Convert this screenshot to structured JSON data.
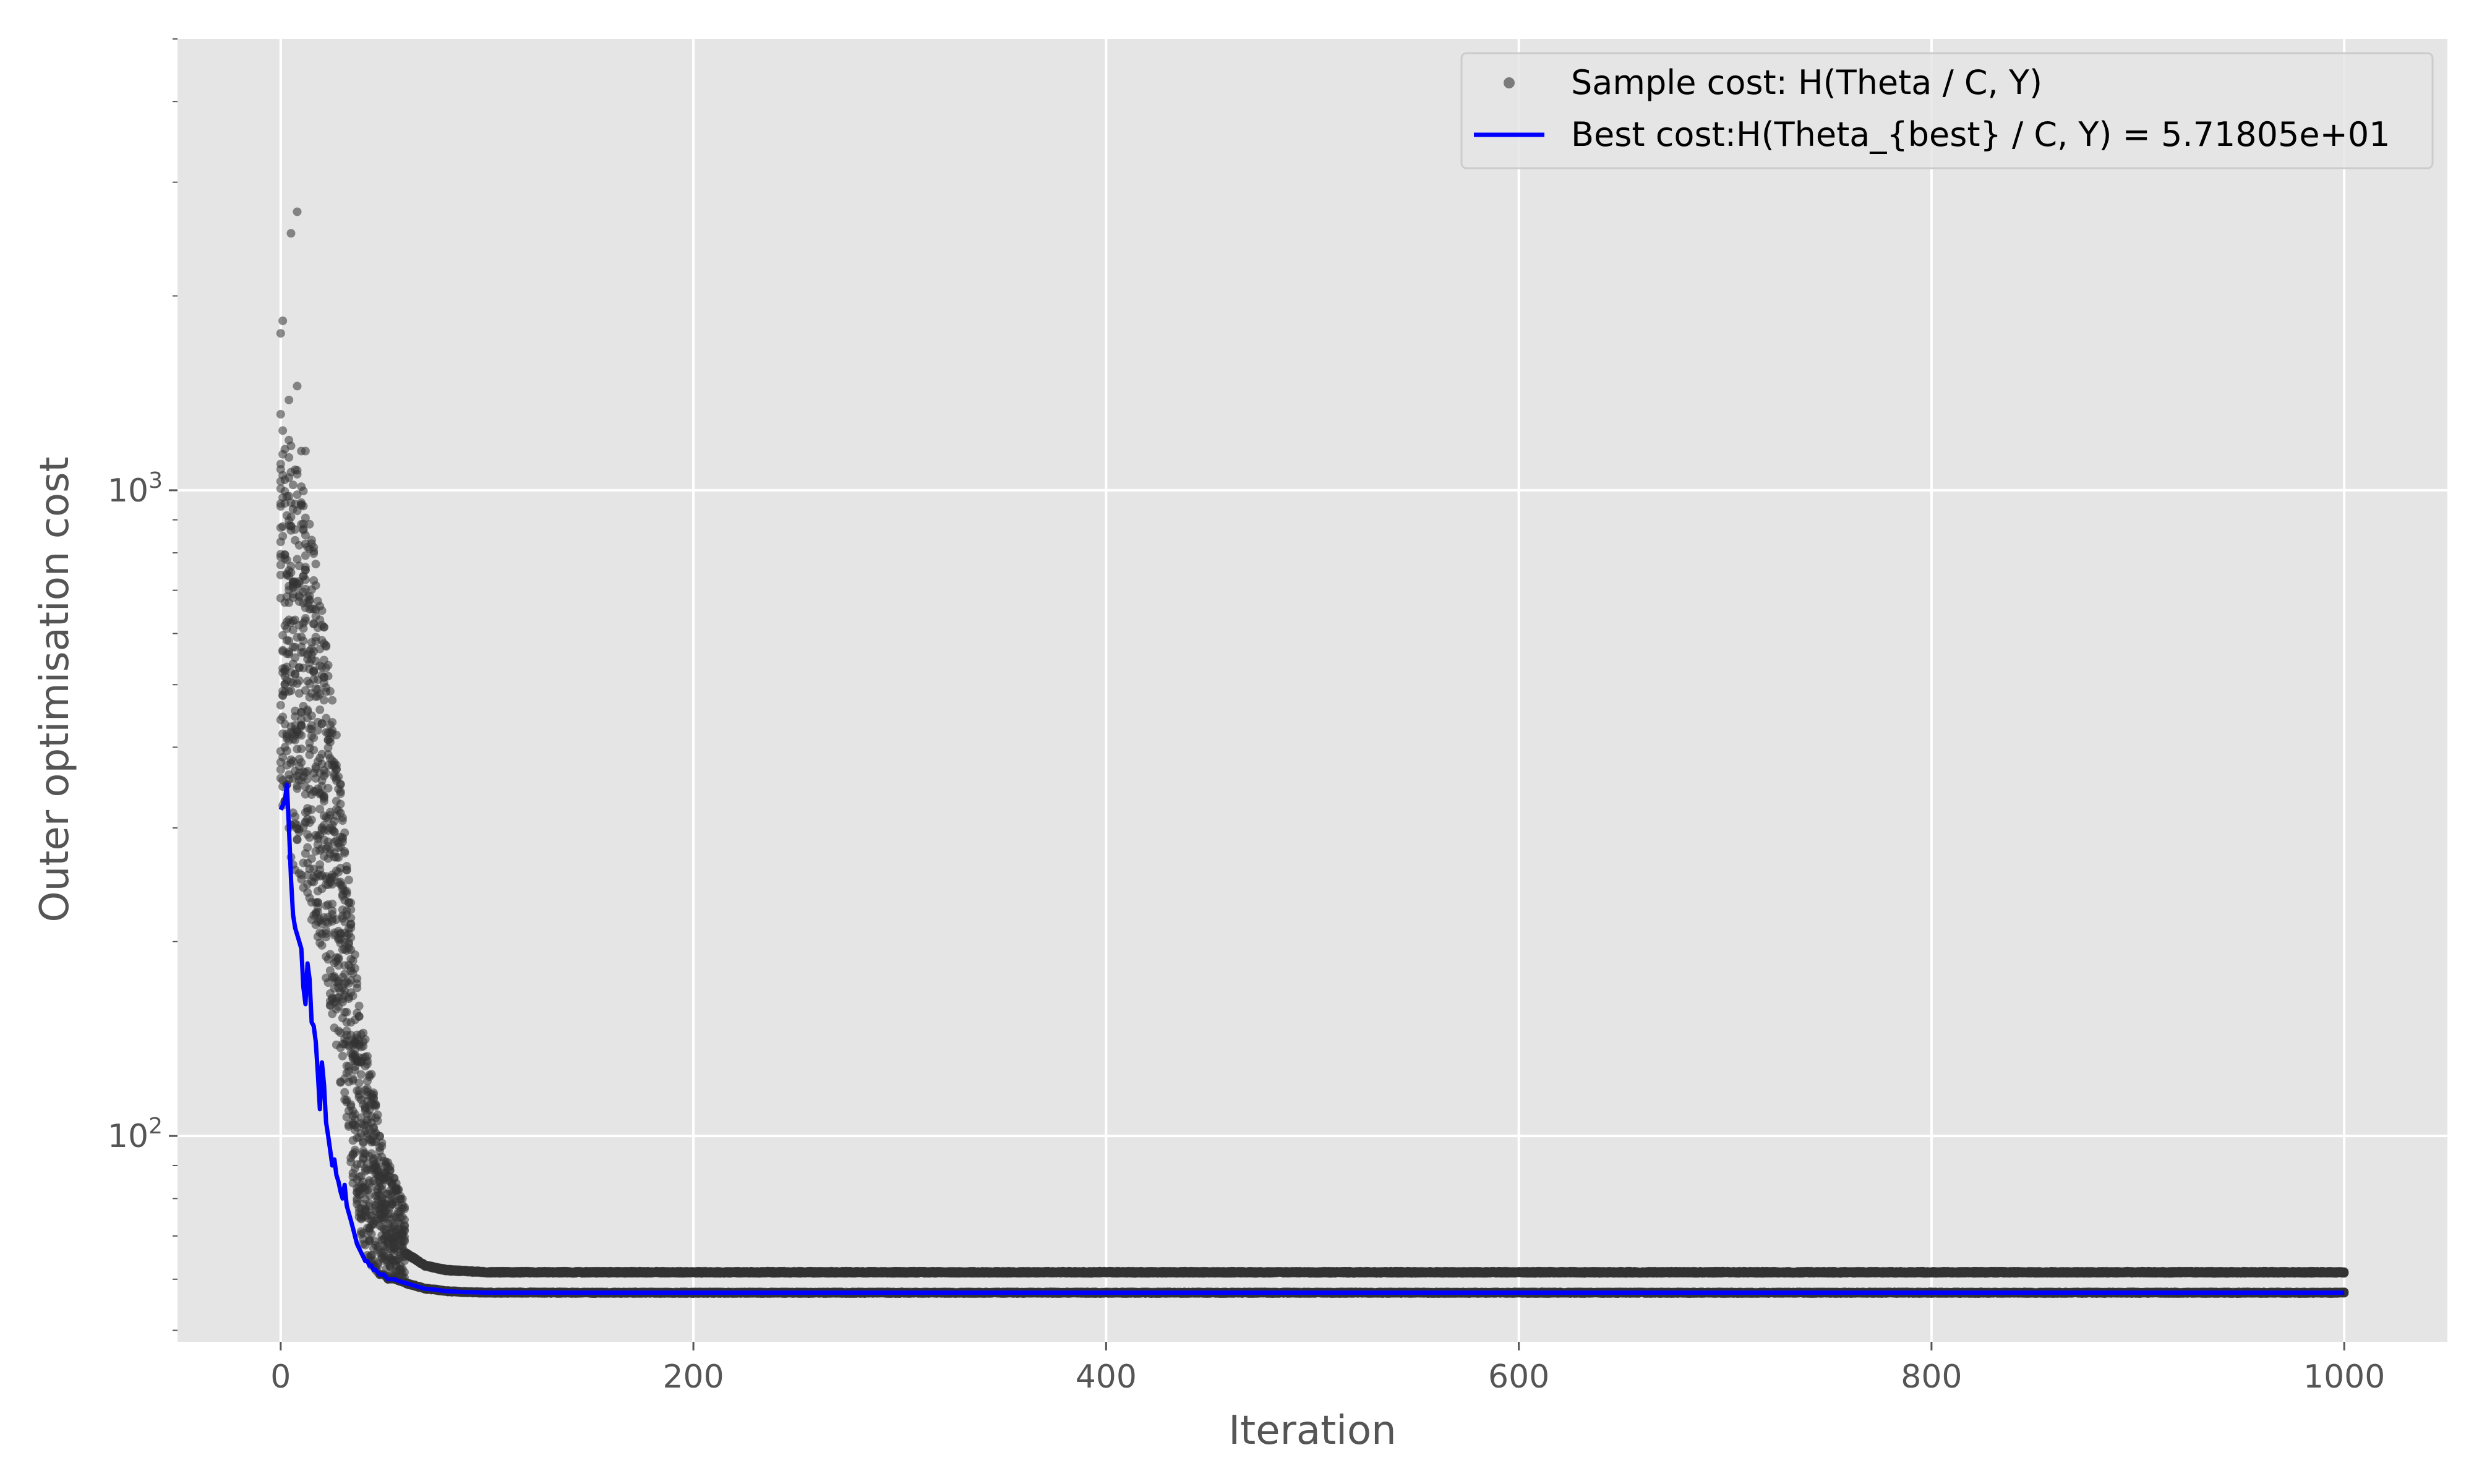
{
  "chart_data": {
    "type": "scatter",
    "title": "",
    "xlabel": "Iteration",
    "ylabel": "Outer optimisation cost",
    "yscale": "log",
    "xlim": [
      -50,
      1050
    ],
    "ylim": [
      48,
      5000
    ],
    "x_ticks": [
      0,
      200,
      400,
      600,
      800,
      1000
    ],
    "y_ticks": [
      {
        "value": 100,
        "base": "10",
        "exp": "2"
      },
      {
        "value": 1000,
        "base": "10",
        "exp": "3"
      }
    ],
    "grid": true,
    "background": "#e5e5e5",
    "legend_position": "top-right",
    "series": [
      {
        "name": "Sample cost: H(Theta / C, Y)",
        "kind": "scatter",
        "color": "#333333",
        "samples_per_iteration": 20,
        "profile": {
          "x": [
            0,
            5,
            10,
            15,
            20,
            25,
            30,
            35,
            40,
            45,
            50,
            60,
            70,
            80,
            100,
            150,
            1000
          ],
          "median": [
            600,
            560,
            500,
            430,
            360,
            270,
            190,
            135,
            100,
            85,
            74,
            66,
            63,
            62,
            61.5,
            61.5,
            61.5
          ],
          "spread_factor": [
            2.2,
            2.1,
            2.1,
            2.0,
            1.9,
            1.8,
            1.7,
            1.6,
            1.5,
            1.4,
            1.3,
            1.2,
            1.15,
            1.12,
            1.1,
            1.09,
            1.09
          ]
        },
        "outliers": [
          {
            "x": 5,
            "y": 2500
          },
          {
            "x": 8,
            "y": 2700
          },
          {
            "x": 0,
            "y": 1750
          },
          {
            "x": 1,
            "y": 1830
          },
          {
            "x": 8,
            "y": 1450
          },
          {
            "x": 4,
            "y": 1380
          },
          {
            "x": 10,
            "y": 1150
          },
          {
            "x": 12,
            "y": 1150
          }
        ]
      },
      {
        "name": "Best cost:H(Theta_{best} / C, Y) = 5.71805e+01",
        "kind": "line",
        "color": "#0000ff",
        "x": [
          0,
          2,
          3,
          4,
          5,
          6,
          7,
          8,
          9,
          10,
          11,
          12,
          13,
          14,
          15,
          16,
          17,
          18,
          19,
          20,
          21,
          22,
          23,
          24,
          25,
          26,
          27,
          28,
          29,
          30,
          31,
          32,
          33,
          34,
          35,
          36,
          37,
          38,
          39,
          40,
          41,
          42,
          43,
          44,
          45,
          46,
          48,
          50,
          52,
          55,
          58,
          62,
          66,
          70,
          75,
          80,
          90,
          100,
          150,
          200,
          1000
        ],
        "y": [
          320,
          330,
          350,
          300,
          250,
          220,
          210,
          205,
          200,
          195,
          170,
          160,
          185,
          175,
          150,
          148,
          140,
          125,
          110,
          130,
          120,
          105,
          100,
          95,
          90,
          92,
          87,
          85,
          82,
          80,
          84,
          78,
          76,
          74,
          72,
          70,
          68,
          67,
          66,
          65,
          64,
          64,
          63,
          63,
          62,
          62,
          61,
          61,
          60,
          60,
          59.5,
          59,
          58.5,
          58,
          57.8,
          57.5,
          57.3,
          57.2,
          57.18,
          57.18,
          57.18
        ]
      }
    ]
  }
}
